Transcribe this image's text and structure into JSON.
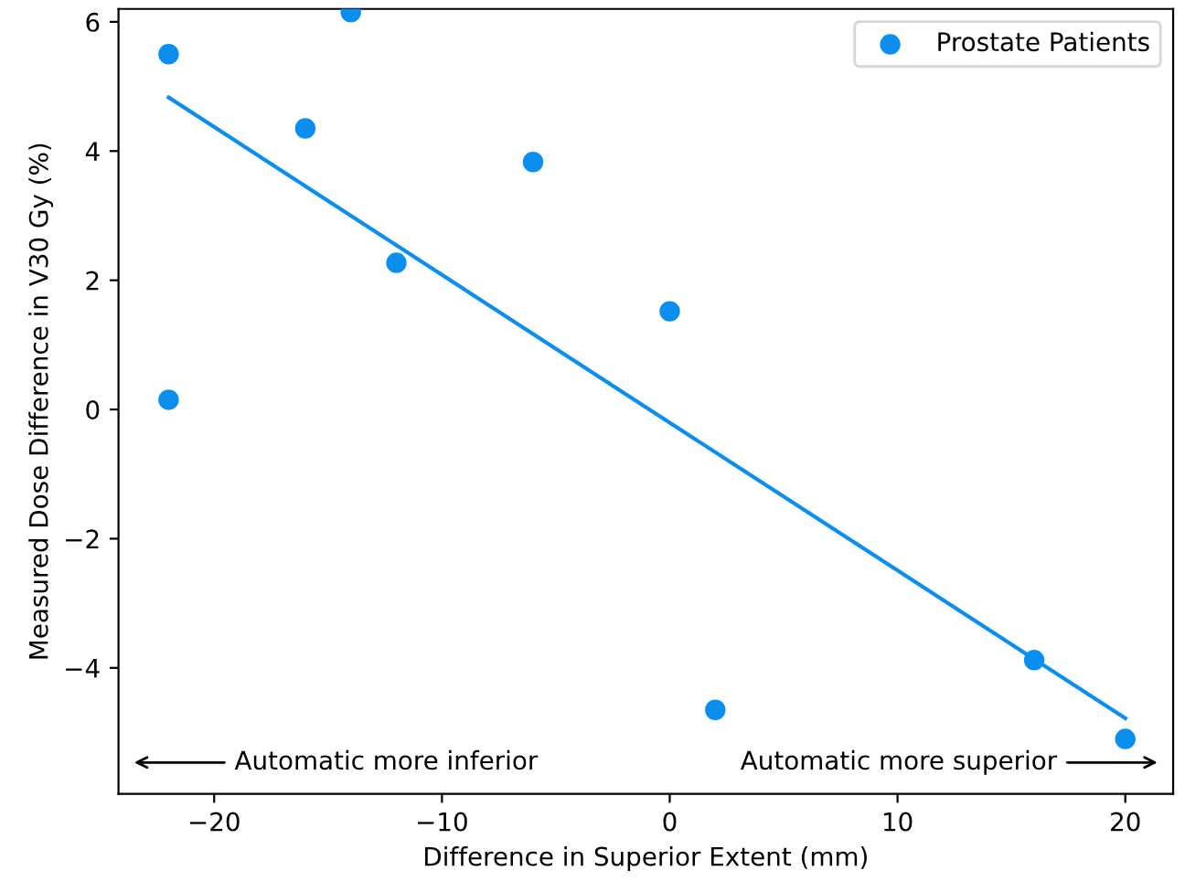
{
  "chart_data": {
    "type": "scatter",
    "xlabel": "Difference in Superior Extent (mm)",
    "ylabel": "Measured Dose Difference in V30 Gy (%)",
    "series": [
      {
        "name": "Prostate Patients",
        "marker": "circle",
        "color": "#0a8ff0",
        "x": [
          -22,
          -22,
          -16,
          -14,
          -12,
          -6,
          0,
          2,
          16,
          20
        ],
        "values": [
          5.5,
          0.15,
          4.35,
          6.15,
          2.27,
          3.83,
          1.52,
          -4.65,
          -3.88,
          -5.1
        ]
      },
      {
        "type": "line",
        "marker": "none",
        "color": "#0a8ff0",
        "x": [
          -22,
          20
        ],
        "values": [
          4.83,
          -4.78
        ]
      }
    ],
    "xlim": [
      -24.2,
      22.1
    ],
    "ylim": [
      -5.95,
      6.2
    ],
    "xticks": [
      -20,
      -10,
      0,
      10,
      20
    ],
    "yticks": [
      -4,
      -2,
      0,
      2,
      4,
      6
    ],
    "legend": "top right",
    "annotations": [
      "Automatic more inferior",
      "Automatic more superior"
    ]
  }
}
